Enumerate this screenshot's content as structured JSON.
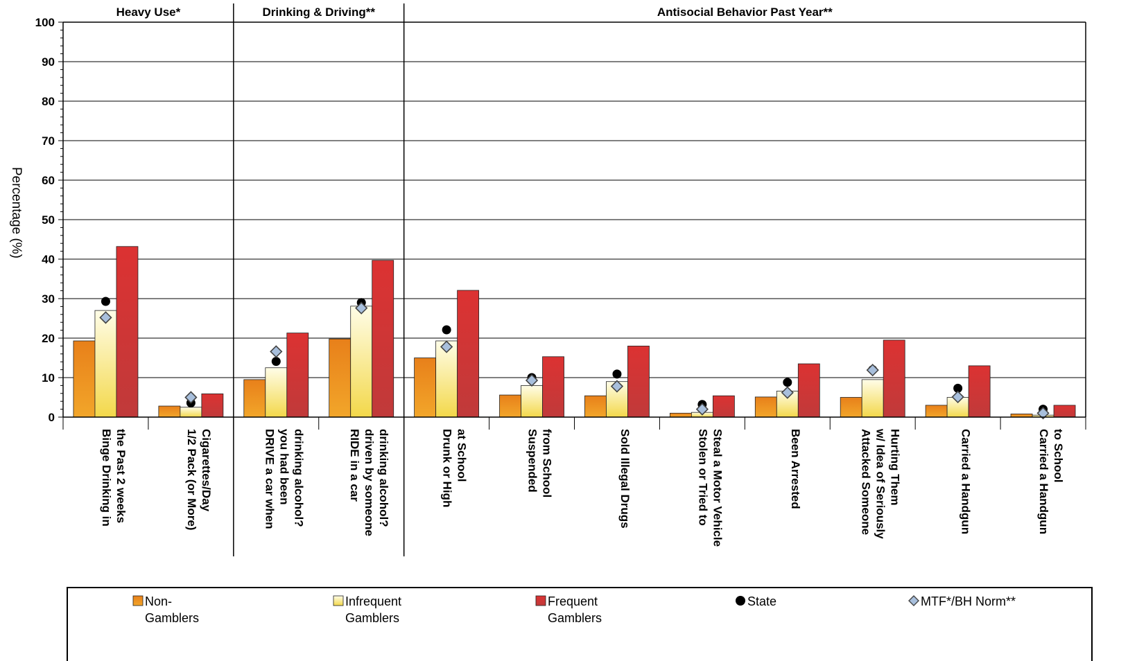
{
  "chart_data": {
    "type": "bar",
    "ylabel": "Percentage (%)",
    "ylim": [
      0,
      100
    ],
    "yticks": [
      0,
      10,
      20,
      30,
      40,
      50,
      60,
      70,
      80,
      90,
      100
    ],
    "grid": true,
    "groups": [
      {
        "label": "Heavy Use*",
        "count": 2
      },
      {
        "label": "Drinking & Driving**",
        "count": 2
      },
      {
        "label": "Antisocial Behavior Past Year**",
        "count": 8
      }
    ],
    "categories": [
      [
        "Binge Drinking in",
        "the Past 2 weeks"
      ],
      [
        "1/2 Pack (or More)",
        "Cigarettes/Day"
      ],
      [
        "DRIVE a car when",
        "you had been",
        "drinking alcohol?"
      ],
      [
        "RIDE in a car",
        "driven by someone",
        "drinking alcohol?"
      ],
      [
        "Drunk or High",
        "at School"
      ],
      [
        "Suspended",
        "from School"
      ],
      [
        "Sold Illegal Drugs"
      ],
      [
        "Stolen or Tried to",
        "Steal a Motor Vehicle"
      ],
      [
        "Been Arrested"
      ],
      [
        "Attacked Someone",
        "w/ Idea of Seriously",
        "Hurting Them"
      ],
      [
        "Carried a Handgun"
      ],
      [
        "Carried a Handgun",
        "to School"
      ]
    ],
    "series": [
      {
        "name": [
          "Non-",
          "Gamblers"
        ],
        "kind": "bar",
        "color_top": "#e8801a",
        "color_bottom": "#f2a62a",
        "values": [
          19.3,
          2.8,
          9.5,
          19.8,
          15.0,
          5.6,
          5.4,
          1.0,
          5.1,
          5.0,
          3.0,
          0.8
        ]
      },
      {
        "name": [
          "Infrequent",
          "Gamblers"
        ],
        "kind": "bar",
        "color_top": "#fffde8",
        "color_bottom": "#f3d84a",
        "values": [
          27.0,
          2.5,
          12.5,
          28.1,
          19.3,
          8.0,
          9.0,
          1.2,
          6.6,
          9.5,
          5.0,
          0.5
        ]
      },
      {
        "name": [
          "Frequent",
          "Gamblers"
        ],
        "kind": "bar",
        "color_top": "#dc3232",
        "color_bottom": "#c03a3a",
        "values": [
          43.2,
          5.9,
          21.3,
          39.7,
          32.1,
          15.3,
          18.0,
          5.4,
          13.5,
          19.5,
          13.0,
          3.0
        ]
      },
      {
        "name": [
          "State"
        ],
        "kind": "dot",
        "color": "#000000",
        "values": [
          29.3,
          3.6,
          14.1,
          29.0,
          22.1,
          10.0,
          10.9,
          3.2,
          8.8,
          12.0,
          7.3,
          2.0
        ]
      },
      {
        "name": [
          "MTF*/BH Norm**"
        ],
        "kind": "diamond",
        "color": "#a8bfdc",
        "values": [
          25.2,
          5.0,
          16.6,
          27.6,
          17.8,
          9.3,
          7.8,
          2.0,
          6.2,
          11.9,
          5.1,
          1.0
        ]
      }
    ]
  }
}
